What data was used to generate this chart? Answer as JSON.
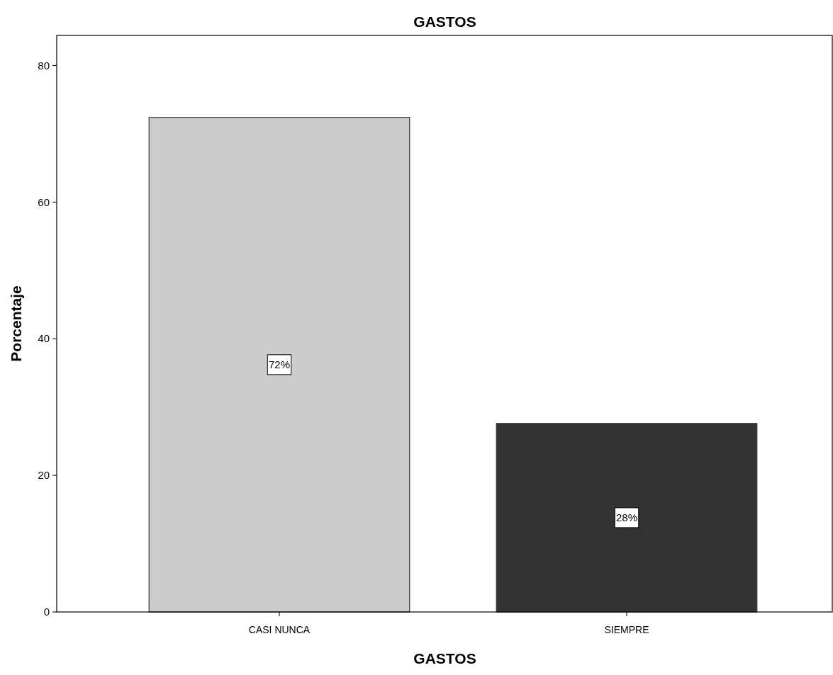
{
  "chart_data": {
    "type": "bar",
    "title": "GASTOS",
    "xlabel": "GASTOS",
    "ylabel": "Porcentaje",
    "categories": [
      "CASI NUNCA",
      "SIEMPRE"
    ],
    "values": [
      72.4,
      27.6
    ],
    "colors": [
      "#cccccc",
      "#333333"
    ],
    "value_labels": [
      "72%",
      "28%"
    ],
    "ylim": [
      0,
      84.4
    ],
    "yticks": [
      0,
      20,
      40,
      60,
      80
    ],
    "grid": false
  }
}
